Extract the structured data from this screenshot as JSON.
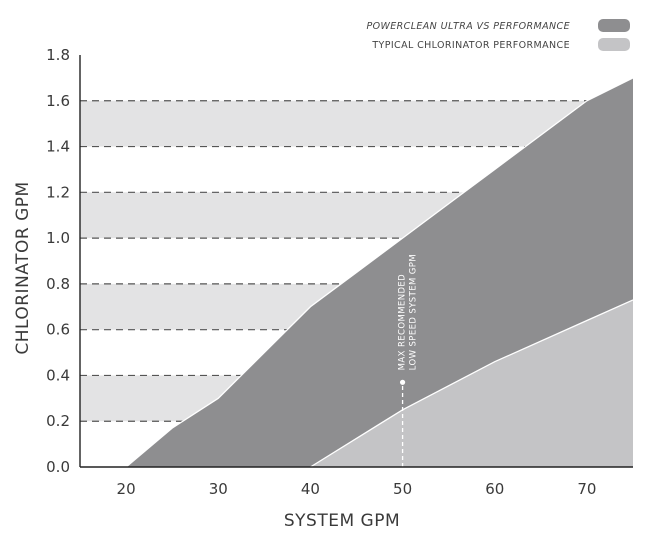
{
  "chart_data": {
    "type": "area",
    "title": "",
    "xlabel": "SYSTEM GPM",
    "ylabel": "CHLORINATOR GPM",
    "xlim": [
      15,
      75
    ],
    "ylim": [
      0,
      1.8
    ],
    "x_ticks": [
      "20",
      "30",
      "40",
      "50",
      "60",
      "70"
    ],
    "y_ticks": [
      "0.0",
      "0.2",
      "0.4",
      "0.6",
      "0.8",
      "1.0",
      "1.2",
      "1.4",
      "1.6",
      "1.8"
    ],
    "grid": "horizontal dashed",
    "legend_position": "top-right",
    "series": [
      {
        "name": "POWERCLEAN ULTRA VS PERFORMANCE",
        "color": "#8e8e90",
        "x": [
          20,
          25,
          30,
          35,
          40,
          45,
          50,
          55,
          60,
          65,
          70,
          75
        ],
        "y": [
          0,
          0.17,
          0.3,
          0.5,
          0.7,
          0.85,
          1.0,
          1.15,
          1.3,
          1.45,
          1.6,
          1.7
        ]
      },
      {
        "name": "TYPICAL CHLORINATOR PERFORMANCE",
        "color": "#c4c4c6",
        "x": [
          40,
          50,
          60,
          70,
          75
        ],
        "y": [
          0,
          0.25,
          0.46,
          0.64,
          0.73
        ]
      }
    ],
    "annotations": [
      {
        "text_line1": "MAX RECOMMENDED",
        "text_line2": "LOW SPEED SYSTEM GPM",
        "x": 50,
        "y_from": 0,
        "y_to": 0.37
      }
    ]
  }
}
